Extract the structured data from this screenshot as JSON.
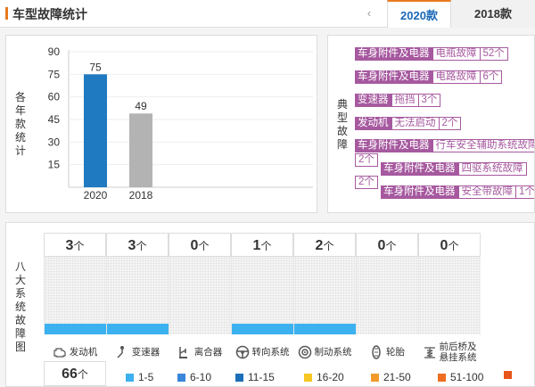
{
  "header": {
    "title": "车型故障统计",
    "prev_icon": "‹",
    "tabs": [
      {
        "label": "2020款",
        "active": true
      },
      {
        "label": "2018款",
        "active": false
      }
    ]
  },
  "yearly": {
    "side_label": "各年款统计",
    "chart_data": {
      "type": "bar",
      "categories": [
        "2020",
        "2018"
      ],
      "values": [
        75,
        49
      ],
      "yticks": [
        15,
        30,
        45,
        60,
        75,
        90
      ],
      "ylim": [
        0,
        90
      ],
      "colors": [
        "#1f7ac1",
        "#b3b3b3"
      ],
      "xlabel": "",
      "ylabel": ""
    }
  },
  "faults": {
    "side_label": "典型故障",
    "items": [
      {
        "system": "车身附件及电器",
        "fault": "电瓶故障",
        "count": "52个"
      },
      {
        "system": "车身附件及电器",
        "fault": "电路故障",
        "count": "6个"
      },
      {
        "system": "变速器",
        "fault": "拖挡",
        "count": "3个"
      },
      {
        "system": "发动机",
        "fault": "无法启动",
        "count": "2个"
      },
      {
        "system": "车身附件及电器",
        "fault": "行车安全辅助系统故障",
        "count": "2个"
      },
      {
        "system": "车身附件及电器",
        "fault": "四驱系统故障",
        "count": "2个"
      },
      {
        "system": "车身附件及电器",
        "fault": "安全带故障",
        "count": "1个"
      }
    ]
  },
  "systems": {
    "side_label": "八大系统故障图",
    "unit": "个",
    "heat_color": "#3cb1f0",
    "items": [
      {
        "name": "发动机",
        "count": "3",
        "icon": "engine-icon"
      },
      {
        "name": "变速器",
        "count": "3",
        "icon": "gear-shift-icon"
      },
      {
        "name": "离合器",
        "count": "0",
        "icon": "clutch-pedal-icon"
      },
      {
        "name": "转向系统",
        "count": "1",
        "icon": "steering-wheel-icon"
      },
      {
        "name": "制动系统",
        "count": "2",
        "icon": "brake-disc-icon"
      },
      {
        "name": "轮胎",
        "count": "0",
        "icon": "tire-icon"
      },
      {
        "name": "前后桥及悬挂系统",
        "label_line1": "前后桥及",
        "label_line2": "悬挂系统",
        "count": "0",
        "icon": "suspension-icon"
      }
    ],
    "total": {
      "count": "66",
      "unit": "个"
    },
    "legend": [
      {
        "label": "1-5",
        "color": "#3cb1f0"
      },
      {
        "label": "6-10",
        "color": "#3a86d9"
      },
      {
        "label": "11-15",
        "color": "#1a6fb8"
      },
      {
        "label": "16-20",
        "color": "#f6c623"
      },
      {
        "label": "21-50",
        "color": "#f29a2b"
      },
      {
        "label": "51-100",
        "color": "#ef6d22"
      },
      {
        "label": "",
        "color": "#e8541a"
      }
    ]
  }
}
